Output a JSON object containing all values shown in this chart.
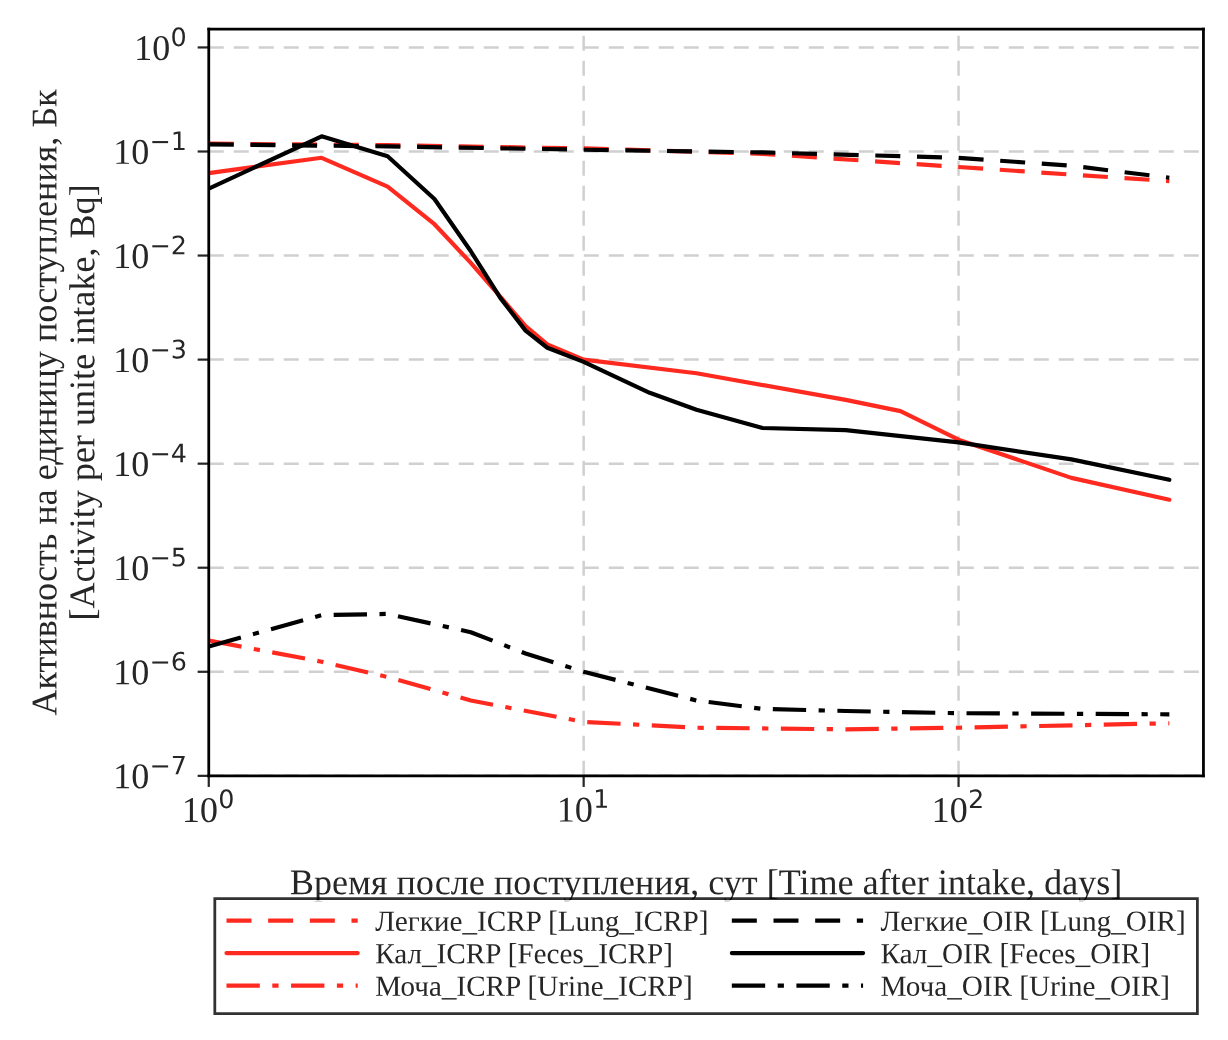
{
  "chart_data": {
    "type": "line",
    "xlabel": "Время после поступления, сут [Time after intake, days]",
    "ylabel": "Активность на единицу поступления, Бк\n[Activity per unite intake, Bq]",
    "log": "xy",
    "grid": true,
    "legend": "bottom",
    "marker": "none",
    "xlim": [
      1,
      450
    ],
    "ylim": [
      1e-07,
      1.5
    ],
    "xticks": [
      {
        "value": 1,
        "label": "10$^{0}$"
      },
      {
        "value": 10,
        "label": "10$^{1}$"
      },
      {
        "value": 100,
        "label": "10$^{2}$"
      }
    ],
    "yticks": [
      {
        "value": 1e-07,
        "label": "10$^{−7}$"
      },
      {
        "value": 1e-06,
        "label": "10$^{−6}$"
      },
      {
        "value": 1e-05,
        "label": "10$^{−5}$"
      },
      {
        "value": 0.0001,
        "label": "10$^{−4}$"
      },
      {
        "value": 0.001,
        "label": "10$^{−3}$"
      },
      {
        "value": 0.01,
        "label": "10$^{−2}$"
      },
      {
        "value": 0.1,
        "label": "10$^{−1}$"
      },
      {
        "value": 1,
        "label": "10$^{0}$"
      }
    ],
    "series": [
      {
        "name": "Легкие_ICRP [Lung_ICRP]",
        "color": "#ff2a1f",
        "line_style": "dashed",
        "x": [
          1,
          3,
          10,
          30,
          100,
          200,
          365
        ],
        "values": [
          0.119,
          0.115,
          0.107,
          0.095,
          0.071,
          0.06,
          0.052
        ]
      },
      {
        "name": "Кал_ICRP [Feces_ICRP]",
        "color": "#ff2a1f",
        "line_style": "solid",
        "x": [
          1,
          2,
          3,
          4,
          5,
          6,
          7,
          8,
          10,
          20,
          50,
          70,
          100,
          200,
          365
        ],
        "values": [
          0.062,
          0.087,
          0.046,
          0.02,
          0.0085,
          0.004,
          0.0021,
          0.0014,
          0.001,
          0.00074,
          0.00041,
          0.00032,
          0.00017,
          7.3e-05,
          4.5e-05
        ]
      },
      {
        "name": "Моча_ICRP [Urine_ICRP]",
        "color": "#ff2a1f",
        "line_style": "dashdot",
        "x": [
          1,
          2,
          3,
          5,
          10,
          20,
          50,
          100,
          365
        ],
        "values": [
          2e-06,
          1.25e-06,
          8.9e-07,
          5.3e-07,
          3.3e-07,
          2.9e-07,
          2.8e-07,
          2.9e-07,
          3.2e-07
        ]
      },
      {
        "name": "Легкие_OIR [Lung_OIR]",
        "color": "#000000",
        "line_style": "dashed",
        "x": [
          1,
          3,
          10,
          30,
          100,
          200,
          365
        ],
        "values": [
          0.117,
          0.112,
          0.104,
          0.098,
          0.087,
          0.073,
          0.056
        ]
      },
      {
        "name": "Кал_OIR [Feces_OIR]",
        "color": "#000000",
        "line_style": "solid",
        "x": [
          1,
          2,
          3,
          4,
          5,
          6,
          7,
          8,
          10,
          15,
          20,
          30,
          50,
          100,
          200,
          365
        ],
        "values": [
          0.044,
          0.14,
          0.09,
          0.035,
          0.011,
          0.0039,
          0.0019,
          0.0013,
          0.00095,
          0.00048,
          0.00033,
          0.00022,
          0.00021,
          0.00016,
          0.00011,
          7e-05
        ]
      },
      {
        "name": "Моча_OIR [Urine_OIR]",
        "color": "#000000",
        "line_style": "dashdot",
        "x": [
          1,
          2,
          3,
          5,
          7,
          10,
          20,
          30,
          50,
          100,
          365
        ],
        "values": [
          1.75e-06,
          3.5e-06,
          3.6e-06,
          2.4e-06,
          1.5e-06,
          1e-06,
          5.3e-07,
          4.4e-07,
          4.2e-07,
          4e-07,
          3.9e-07
        ]
      }
    ]
  }
}
